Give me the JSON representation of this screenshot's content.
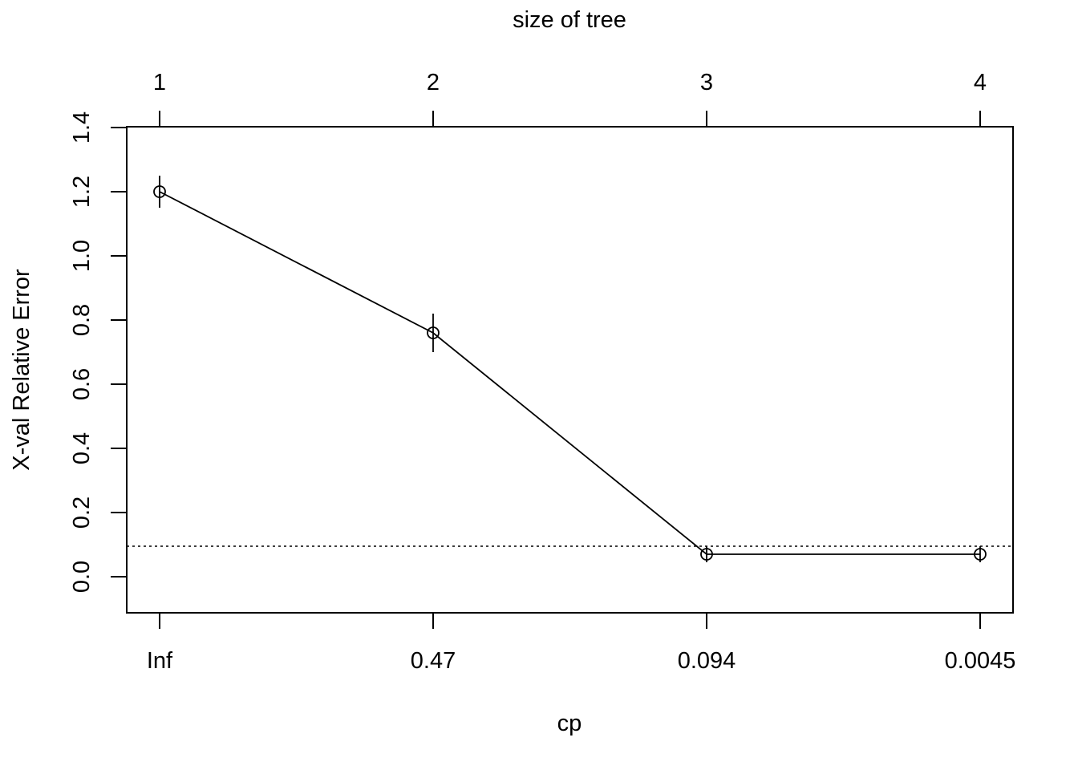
{
  "chart_data": {
    "type": "line",
    "xlabel": "cp",
    "ylabel": "X-val Relative Error",
    "top_axis_title": "size of tree",
    "categories": [
      "Inf",
      "0.47",
      "0.094",
      "0.0045"
    ],
    "top_categories": [
      "1",
      "2",
      "3",
      "4"
    ],
    "y_ticks": [
      "0.0",
      "0.2",
      "0.4",
      "0.6",
      "0.8",
      "1.0",
      "1.2",
      "1.4"
    ],
    "ylim": [
      -0.11,
      1.4
    ],
    "grid": false,
    "series": [
      {
        "values": [
          1.2,
          0.76,
          0.07,
          0.07
        ],
        "error_low": [
          1.15,
          0.7,
          0.045,
          0.045
        ],
        "error_high": [
          1.25,
          0.82,
          0.095,
          0.095
        ]
      }
    ],
    "reference_line": {
      "y": 0.095,
      "style": "dotted"
    },
    "colors": {
      "line": "#000000",
      "background": "#ffffff"
    }
  }
}
